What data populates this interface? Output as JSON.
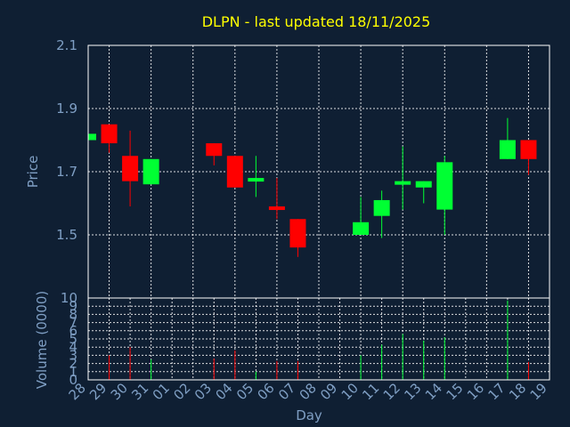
{
  "chart_data": {
    "type": "candlestick",
    "title": "DLPN - last updated 18/11/2025",
    "xlabel": "Day",
    "price_ylabel": "Price",
    "volume_ylabel": "Volume (0000)",
    "x_ticks": [
      "28",
      "29",
      "30",
      "31",
      "01",
      "02",
      "03",
      "04",
      "05",
      "06",
      "07",
      "08",
      "09",
      "10",
      "11",
      "12",
      "13",
      "14",
      "15",
      "16",
      "17",
      "18",
      "19"
    ],
    "price_ylim": [
      1.3,
      2.1
    ],
    "price_yticks": [
      "1.5",
      "1.7",
      "1.9",
      "2.1"
    ],
    "volume_ylim": [
      0,
      10
    ],
    "volume_yticks": [
      "0",
      "1",
      "2",
      "3",
      "4",
      "5",
      "6",
      "7",
      "8",
      "9",
      "10"
    ],
    "grid": true,
    "colors": {
      "background": "#0f1f33",
      "up": "#00ff33",
      "down": "#ff0000",
      "title": "#ffff00",
      "axis_text": "#7f9fc4"
    },
    "candles": [
      {
        "day": "28",
        "open": 1.8,
        "close": 1.82,
        "high": 1.82,
        "low": 1.8,
        "volume": 0.0
      },
      {
        "day": "29",
        "open": 1.85,
        "close": 1.79,
        "high": 1.85,
        "low": 1.76,
        "volume": 3.0
      },
      {
        "day": "30",
        "open": 1.75,
        "close": 1.67,
        "high": 1.83,
        "low": 1.59,
        "volume": 4.0
      },
      {
        "day": "31",
        "open": 1.66,
        "close": 1.74,
        "high": 1.74,
        "low": 1.66,
        "volume": 2.5
      },
      {
        "day": "03",
        "open": 1.79,
        "close": 1.75,
        "high": 1.79,
        "low": 1.72,
        "volume": 2.6
      },
      {
        "day": "04",
        "open": 1.75,
        "close": 1.65,
        "high": 1.75,
        "low": 1.65,
        "volume": 3.6
      },
      {
        "day": "05",
        "open": 1.67,
        "close": 1.68,
        "high": 1.75,
        "low": 1.62,
        "volume": 1.0
      },
      {
        "day": "06",
        "open": 1.59,
        "close": 1.58,
        "high": 1.68,
        "low": 1.55,
        "volume": 2.3
      },
      {
        "day": "07",
        "open": 1.55,
        "close": 1.46,
        "high": 1.55,
        "low": 1.43,
        "volume": 2.3
      },
      {
        "day": "10",
        "open": 1.5,
        "close": 1.54,
        "high": 1.62,
        "low": 1.5,
        "volume": 3.0
      },
      {
        "day": "11",
        "open": 1.56,
        "close": 1.61,
        "high": 1.64,
        "low": 1.49,
        "volume": 4.3
      },
      {
        "day": "12",
        "open": 1.66,
        "close": 1.67,
        "high": 1.78,
        "low": 1.58,
        "volume": 5.6
      },
      {
        "day": "13",
        "open": 1.65,
        "close": 1.67,
        "high": 1.67,
        "low": 1.6,
        "volume": 4.8
      },
      {
        "day": "14",
        "open": 1.58,
        "close": 1.73,
        "high": 1.75,
        "low": 1.5,
        "volume": 5.2
      },
      {
        "day": "17",
        "open": 1.74,
        "close": 1.8,
        "high": 1.87,
        "low": 1.74,
        "volume": 9.7
      },
      {
        "day": "18",
        "open": 1.8,
        "close": 1.74,
        "high": 1.8,
        "low": 1.69,
        "volume": 2.2
      }
    ]
  }
}
